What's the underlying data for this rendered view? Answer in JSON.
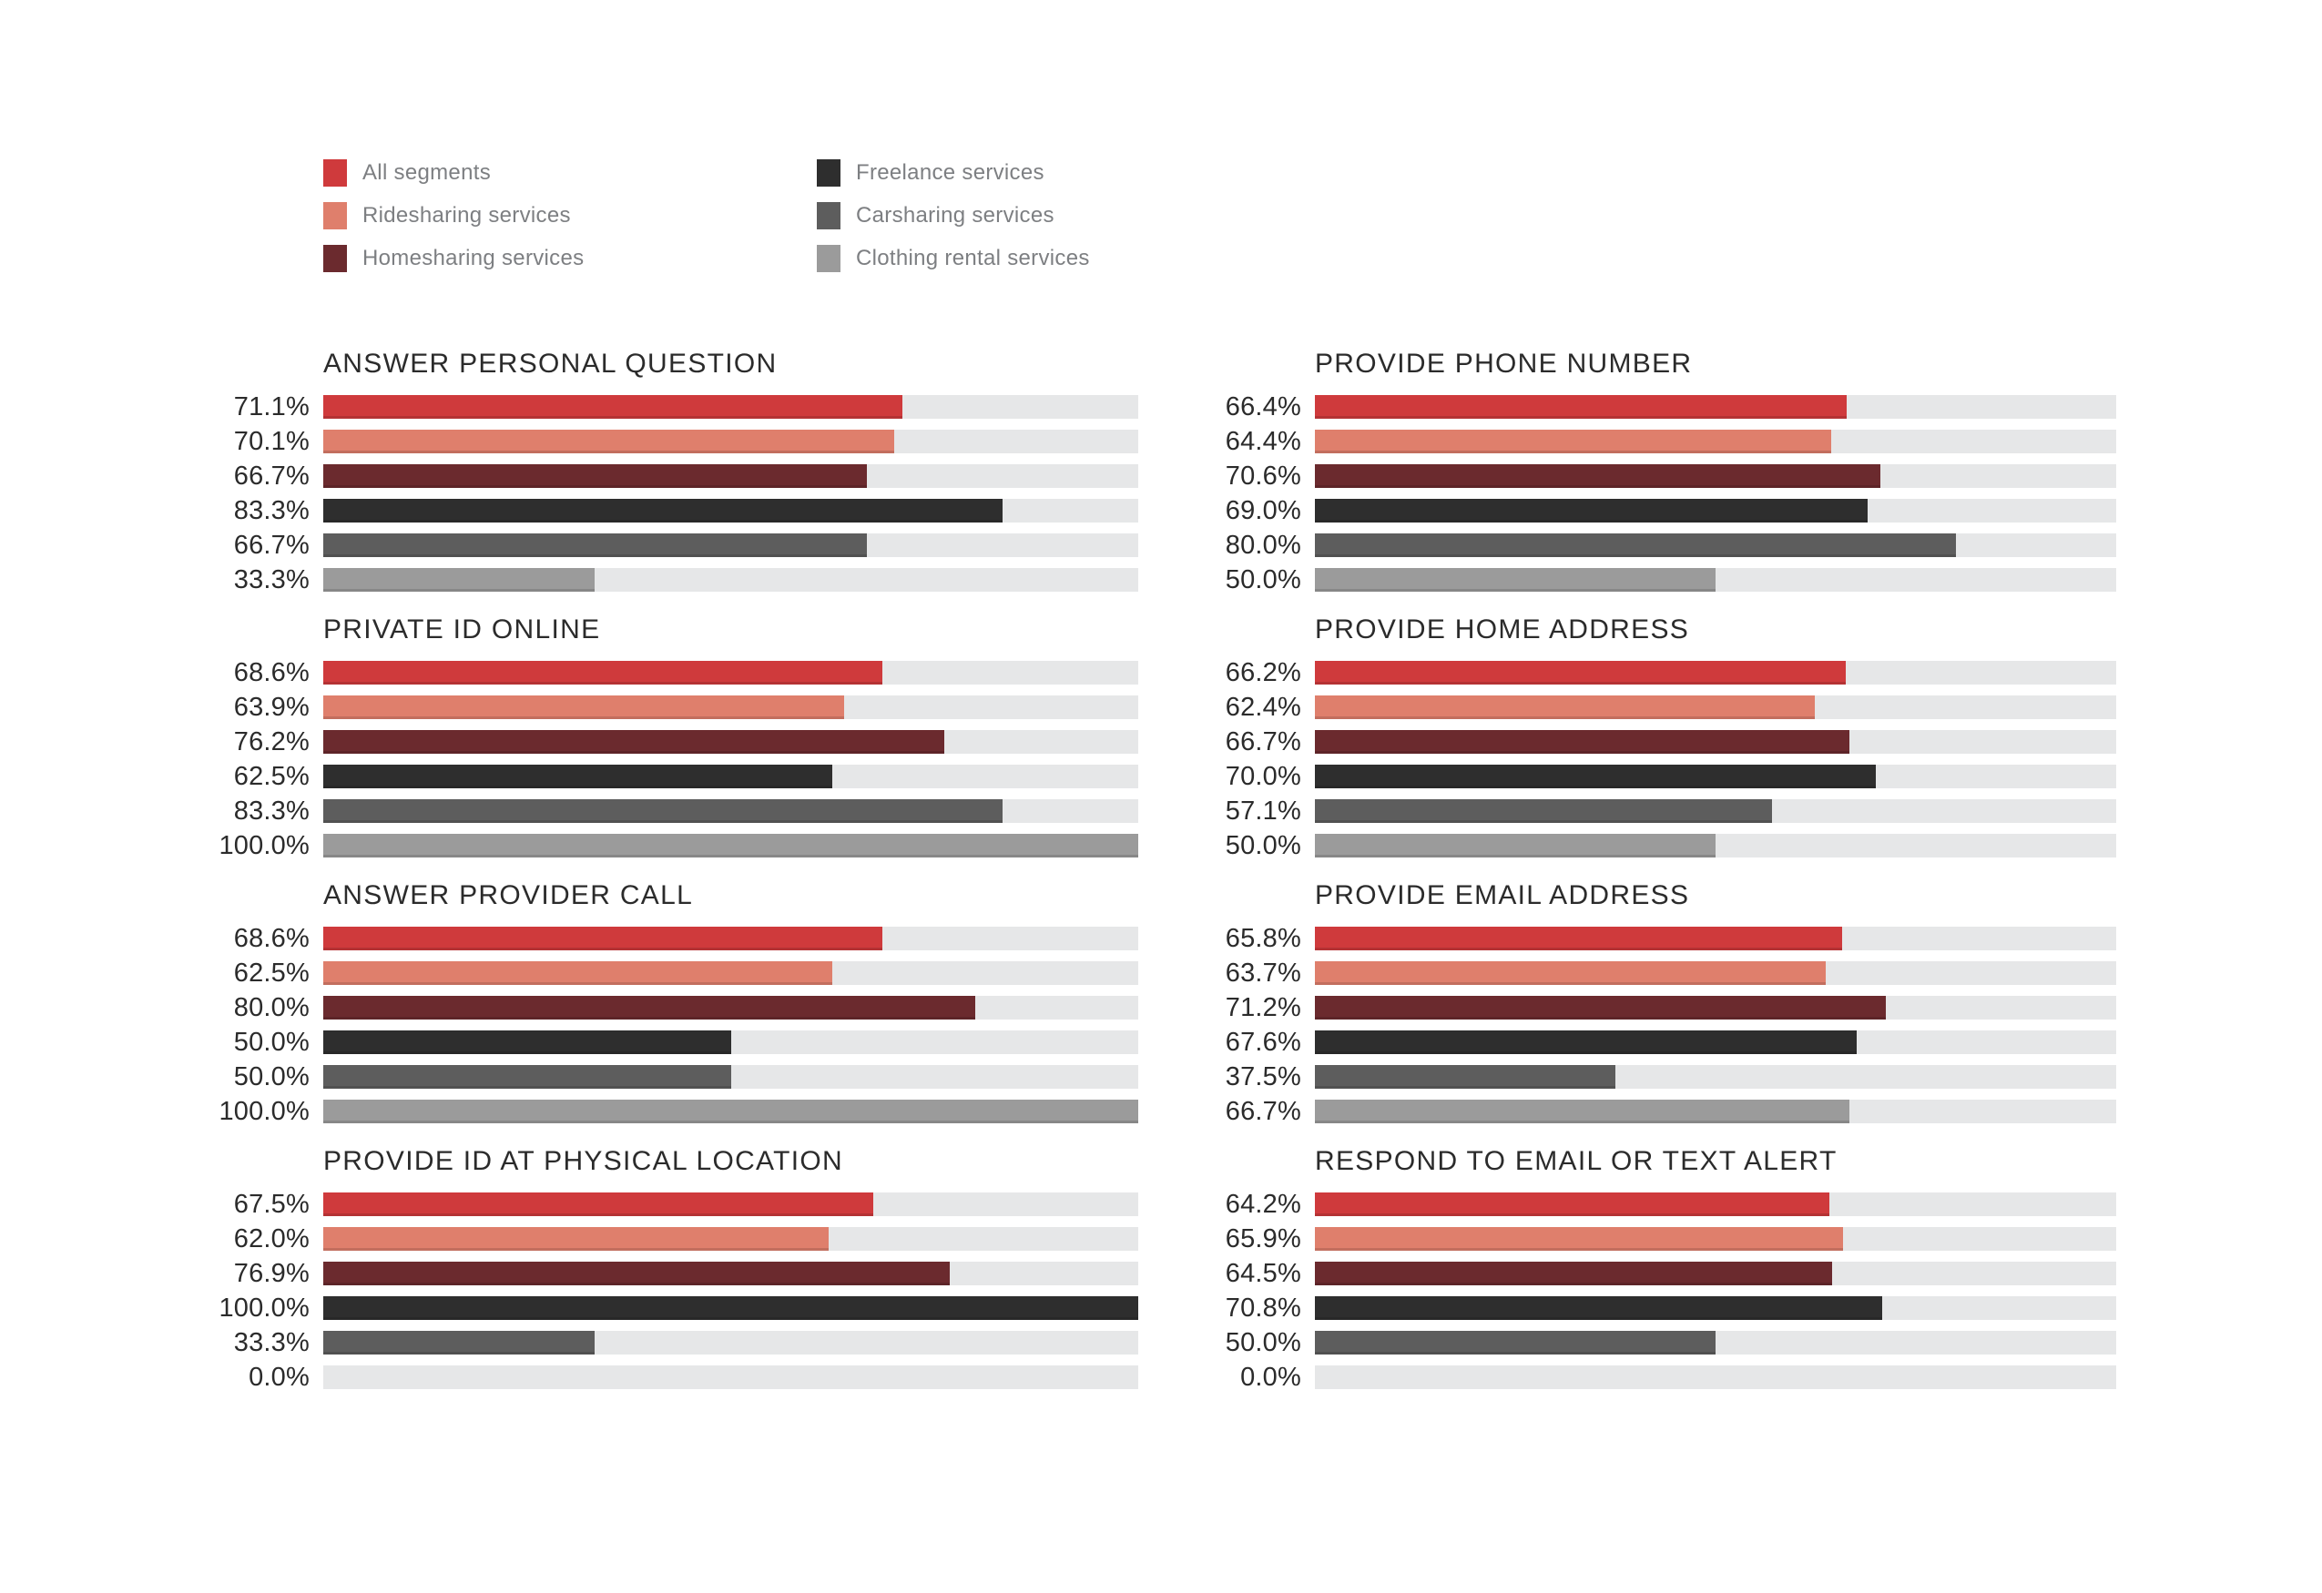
{
  "colors": {
    "background": "#ffffff",
    "track": "#e6e7e8",
    "title_text": "#2b2b2b",
    "value_text": "#2b2b2b",
    "legend_text": "#7d7f82"
  },
  "legend": {
    "items": [
      {
        "label": "All segments",
        "color": "#cf3a3c"
      },
      {
        "label": "Ridesharing services",
        "color": "#df7f6c"
      },
      {
        "label": "Homesharing services",
        "color": "#6b2a2e"
      },
      {
        "label": "Freelance services",
        "color": "#2e2e2e"
      },
      {
        "label": "Carsharing services",
        "color": "#5d5d5d"
      },
      {
        "label": "Clothing rental services",
        "color": "#9b9b9b"
      }
    ]
  },
  "chart_data": [
    {
      "type": "bar",
      "title": "ANSWER PERSONAL QUESTION",
      "column": "left",
      "categories": [
        "All segments",
        "Ridesharing services",
        "Homesharing services",
        "Freelance services",
        "Carsharing services",
        "Clothing rental services"
      ],
      "values": [
        71.1,
        70.1,
        66.7,
        83.3,
        66.7,
        33.3
      ],
      "value_labels": [
        "71.1%",
        "70.1%",
        "66.7%",
        "83.3%",
        "66.7%",
        "33.3%"
      ],
      "xlim": [
        0,
        100
      ],
      "grid": false,
      "legend_position": "top-left"
    },
    {
      "type": "bar",
      "title": "PRIVATE ID ONLINE",
      "column": "left",
      "categories": [
        "All segments",
        "Ridesharing services",
        "Homesharing services",
        "Freelance services",
        "Carsharing services",
        "Clothing rental services"
      ],
      "values": [
        68.6,
        63.9,
        76.2,
        62.5,
        83.3,
        100.0
      ],
      "value_labels": [
        "68.6%",
        "63.9%",
        "76.2%",
        "62.5%",
        "83.3%",
        "100.0%"
      ],
      "xlim": [
        0,
        100
      ],
      "grid": false
    },
    {
      "type": "bar",
      "title": "ANSWER PROVIDER CALL",
      "column": "left",
      "categories": [
        "All segments",
        "Ridesharing services",
        "Homesharing services",
        "Freelance services",
        "Carsharing services",
        "Clothing rental services"
      ],
      "values": [
        68.6,
        62.5,
        80.0,
        50.0,
        50.0,
        100.0
      ],
      "value_labels": [
        "68.6%",
        "62.5%",
        "80.0%",
        "50.0%",
        "50.0%",
        "100.0%"
      ],
      "xlim": [
        0,
        100
      ],
      "grid": false
    },
    {
      "type": "bar",
      "title": "PROVIDE ID AT PHYSICAL LOCATION",
      "column": "left",
      "categories": [
        "All segments",
        "Ridesharing services",
        "Homesharing services",
        "Freelance services",
        "Carsharing services",
        "Clothing rental services"
      ],
      "values": [
        67.5,
        62.0,
        76.9,
        100.0,
        33.3,
        0.0
      ],
      "value_labels": [
        "67.5%",
        "62.0%",
        "76.9%",
        "100.0%",
        "33.3%",
        "0.0%"
      ],
      "xlim": [
        0,
        100
      ],
      "grid": false
    },
    {
      "type": "bar",
      "title": "PROVIDE PHONE NUMBER",
      "column": "right",
      "categories": [
        "All segments",
        "Ridesharing services",
        "Homesharing services",
        "Freelance services",
        "Carsharing services",
        "Clothing rental services"
      ],
      "values": [
        66.4,
        64.4,
        70.6,
        69.0,
        80.0,
        50.0
      ],
      "value_labels": [
        "66.4%",
        "64.4%",
        "70.6%",
        "69.0%",
        "80.0%",
        "50.0%"
      ],
      "xlim": [
        0,
        100
      ],
      "grid": false
    },
    {
      "type": "bar",
      "title": "PROVIDE HOME ADDRESS",
      "column": "right",
      "categories": [
        "All segments",
        "Ridesharing services",
        "Homesharing services",
        "Freelance services",
        "Carsharing services",
        "Clothing rental services"
      ],
      "values": [
        66.2,
        62.4,
        66.7,
        70.0,
        57.1,
        50.0
      ],
      "value_labels": [
        "66.2%",
        "62.4%",
        "66.7%",
        "70.0%",
        "57.1%",
        "50.0%"
      ],
      "xlim": [
        0,
        100
      ],
      "grid": false
    },
    {
      "type": "bar",
      "title": "PROVIDE EMAIL ADDRESS",
      "column": "right",
      "categories": [
        "All segments",
        "Ridesharing services",
        "Homesharing services",
        "Freelance services",
        "Carsharing services",
        "Clothing rental services"
      ],
      "values": [
        65.8,
        63.7,
        71.2,
        67.6,
        37.5,
        66.7
      ],
      "value_labels": [
        "65.8%",
        "63.7%",
        "71.2%",
        "67.6%",
        "37.5%",
        "66.7%"
      ],
      "xlim": [
        0,
        100
      ],
      "grid": false
    },
    {
      "type": "bar",
      "title": "RESPOND TO EMAIL OR TEXT ALERT",
      "column": "right",
      "categories": [
        "All segments",
        "Ridesharing services",
        "Homesharing services",
        "Freelance services",
        "Carsharing services",
        "Clothing rental services"
      ],
      "values": [
        64.2,
        65.9,
        64.5,
        70.8,
        50.0,
        0.0
      ],
      "value_labels": [
        "64.2%",
        "65.9%",
        "64.5%",
        "70.8%",
        "50.0%",
        "0.0%"
      ],
      "xlim": [
        0,
        100
      ],
      "grid": false
    }
  ]
}
